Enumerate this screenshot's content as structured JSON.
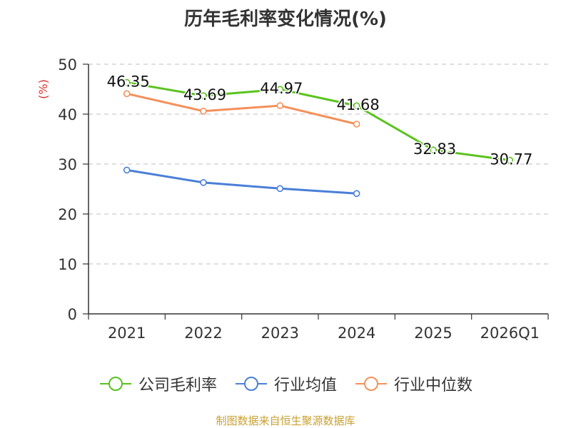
{
  "chart_data": {
    "type": "line",
    "title": "历年毛利率变化情况(%)",
    "ylabel": "(%)",
    "xlabel": "",
    "ylim": [
      0,
      50
    ],
    "yticks": [
      0,
      10,
      20,
      30,
      40,
      50
    ],
    "categories": [
      "2021",
      "2022",
      "2023",
      "2024",
      "2025",
      "2026Q1"
    ],
    "grid": true,
    "legend_position": "bottom",
    "series": [
      {
        "name": "公司毛利率",
        "color": "#5ac31e",
        "show_labels": true,
        "values": [
          46.35,
          43.69,
          44.97,
          41.68,
          32.83,
          30.77
        ],
        "labels": [
          "46.35",
          "43.69",
          "44.97",
          "41.68",
          "32.83",
          "30.77"
        ]
      },
      {
        "name": "行业均值",
        "color": "#4a7fd8",
        "show_labels": false,
        "values": [
          28.8,
          26.3,
          25.1,
          24.1,
          null,
          null
        ]
      },
      {
        "name": "行业中位数",
        "color": "#f4905a",
        "show_labels": false,
        "values": [
          44.1,
          40.6,
          41.7,
          38.0,
          null,
          null
        ]
      }
    ]
  },
  "source": "制图数据来自恒生聚源数据库"
}
